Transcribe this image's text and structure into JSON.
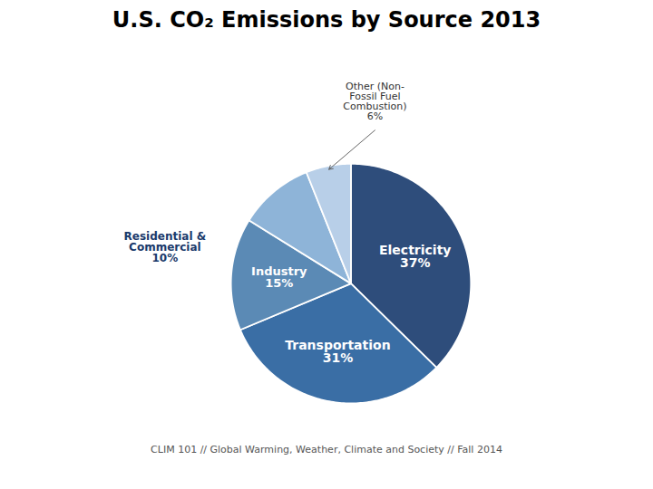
{
  "chart_data": {
    "type": "pie",
    "title": "U.S. CO₂ Emissions by Source 2013",
    "categories": [
      "Electricity",
      "Transportation",
      "Industry",
      "Residential &\nCommercial",
      "Other (Non-\nFossil Fuel\nCombustion)"
    ],
    "values": [
      37,
      31,
      15,
      10,
      6
    ],
    "value_labels": [
      "37%",
      "31%",
      "15%",
      "10%",
      "6%"
    ],
    "data_labels": true,
    "colors": [
      "#2e4d7b",
      "#3a6ea5",
      "#5b8ab5",
      "#8eb4d8",
      "#b8cfe8"
    ],
    "caption": "CLIM 101 // Global Warming, Weather, Climate and Society // Fall 2014"
  }
}
